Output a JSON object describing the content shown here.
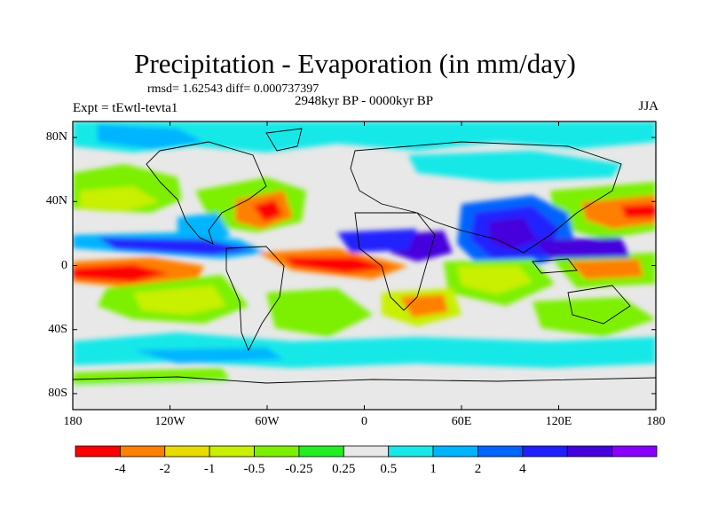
{
  "figure": {
    "title": "Precipitation - Evaporation (in mm/day)",
    "stats_line": "rmsd= 1.62543  diff= 0.000737397",
    "experiment": "Expt = tEwtl-tevta1",
    "period": "2948kyr BP - 0000kyr BP",
    "season": "JJA"
  },
  "map": {
    "lat_ticks": [
      "80N",
      "40N",
      "0",
      "40S",
      "80S"
    ],
    "lon_ticks": [
      "180",
      "120W",
      "60W",
      "0",
      "60E",
      "120E",
      "180"
    ]
  },
  "colorbar": {
    "colors": [
      "#ff0000",
      "#ff7f00",
      "#e6dc00",
      "#c8f000",
      "#7cf000",
      "#22ee22",
      "#e8e8e8",
      "#18e8e8",
      "#00b4ff",
      "#0064ff",
      "#2020ff",
      "#4400dd",
      "#8a00ff"
    ],
    "labels": [
      "-4",
      "-2",
      "-1",
      "-0.5",
      "-0.25",
      "0.25",
      "0.5",
      "1",
      "2",
      "4"
    ]
  }
}
